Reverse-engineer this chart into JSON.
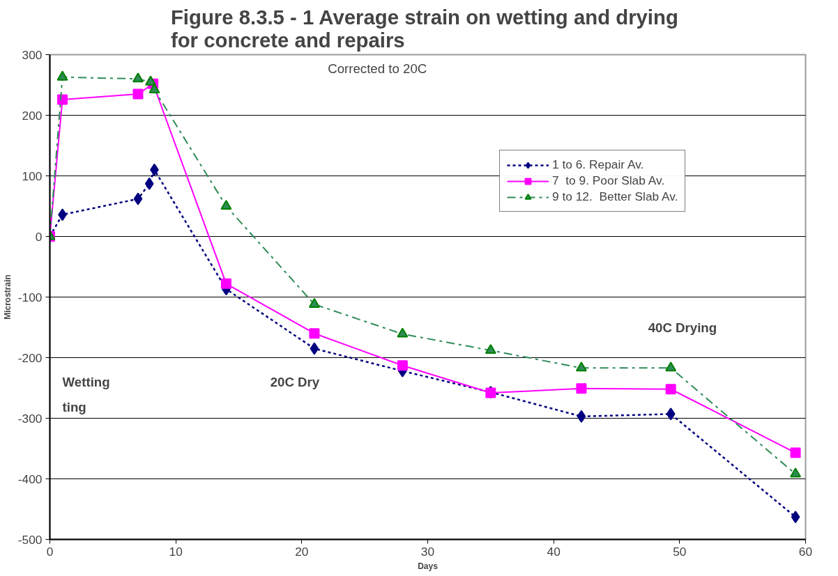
{
  "chart_data": {
    "type": "line",
    "title": "Figure 8.3.5 - 1  Average strain on wetting and drying\nfor concrete and repairs",
    "xlabel": "Days",
    "ylabel": "Microstrain",
    "xlim": [
      0,
      60
    ],
    "xticks": [
      0,
      10,
      20,
      30,
      40,
      50,
      60
    ],
    "ylim": [
      -500,
      300
    ],
    "yticks": [
      -500,
      -400,
      -300,
      -200,
      -100,
      0,
      100,
      200,
      300
    ],
    "grid": "y",
    "legend": "top right",
    "annotations": [
      "Corrected to 20C",
      "Wetting",
      "ting",
      "20C Dry",
      "40C Drying"
    ],
    "series": [
      {
        "name": "1 to 6. Repair Av.",
        "color": "#000080",
        "marker": "diamond",
        "line_style": "dotted",
        "x": [
          0,
          1,
          7,
          7.9,
          8.3,
          14,
          21,
          28,
          35,
          42.2,
          49.3,
          59.2
        ],
        "values": [
          0,
          36,
          62,
          87,
          110,
          -87,
          -185,
          -222,
          -257,
          -297,
          -293,
          -463
        ]
      },
      {
        "name": "7  to 9. Poor Slab Av.",
        "color": "#ff00ff",
        "marker": "square",
        "line_style": "solid",
        "x": [
          0,
          1,
          7,
          8.2,
          14,
          21,
          28,
          35,
          42.2,
          49.3,
          59.2
        ],
        "values": [
          0,
          226,
          235,
          252,
          -78,
          -160,
          -213,
          -258,
          -251,
          -252,
          -357
        ]
      },
      {
        "name": "9 to 12.  Better Slab Av.",
        "color": "#2e8b57",
        "marker": "triangle",
        "line_style": "dashed",
        "x": [
          0,
          1,
          7,
          8,
          8.3,
          14,
          21,
          28,
          35,
          42.2,
          49.3,
          59.2
        ],
        "values": [
          0,
          263,
          260,
          255,
          242,
          50,
          -112,
          -161,
          -188,
          -217,
          -217,
          -392
        ]
      }
    ]
  }
}
